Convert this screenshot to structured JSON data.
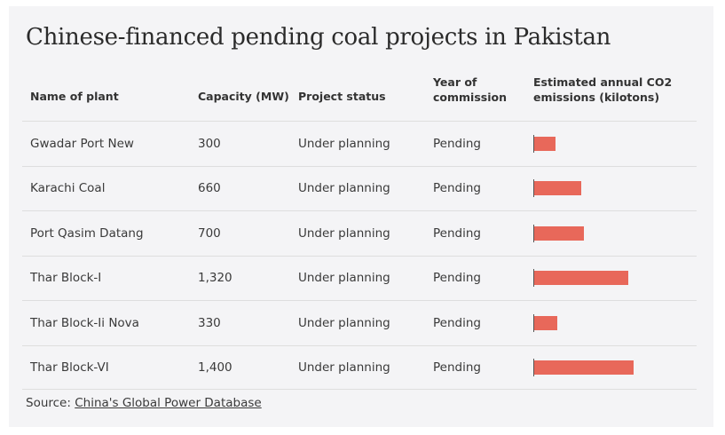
{
  "title": "Chinese-financed pending coal projects in Pakistan",
  "columns": {
    "name": "Name of plant",
    "capacity": "Capacity (MW)",
    "status": "Project status",
    "year_line1": "Year of",
    "year_line2": "commission",
    "emissions_line1": "Estimated annual CO2",
    "emissions_line2": "emissions (kilotons)"
  },
  "source": {
    "prefix": "Source: ",
    "link_text": "China's Global Power Database"
  },
  "colors": {
    "bar": "#e8685a",
    "card_background": "#f4f4f6"
  },
  "chart_data": {
    "type": "table",
    "title": "Chinese-financed pending coal projects in Pakistan",
    "bar_column": "Estimated annual CO2 emissions (kilotons)",
    "bar_max": 1400,
    "rows": [
      {
        "name": "Gwadar Port New",
        "capacity": "300",
        "status": "Under planning",
        "year": "Pending",
        "emissions": 300
      },
      {
        "name": "Karachi Coal",
        "capacity": "660",
        "status": "Under planning",
        "year": "Pending",
        "emissions": 660
      },
      {
        "name": "Port Qasim Datang",
        "capacity": "700",
        "status": "Under planning",
        "year": "Pending",
        "emissions": 700
      },
      {
        "name": "Thar Block-I",
        "capacity": "1,320",
        "status": "Under planning",
        "year": "Pending",
        "emissions": 1320
      },
      {
        "name": "Thar Block-Ii Nova",
        "capacity": "330",
        "status": "Under planning",
        "year": "Pending",
        "emissions": 330
      },
      {
        "name": "Thar Block-VI",
        "capacity": "1,400",
        "status": "Under planning",
        "year": "Pending",
        "emissions": 1400
      }
    ]
  }
}
